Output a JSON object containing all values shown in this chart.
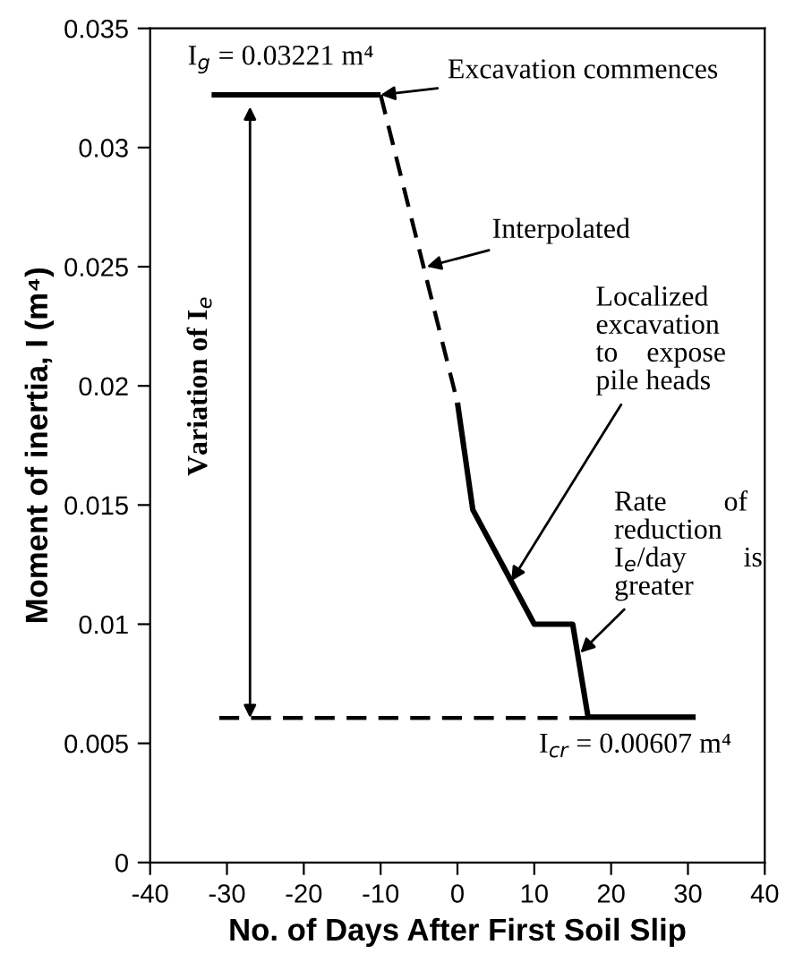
{
  "chart_data": {
    "type": "line",
    "xlabel": "No. of Days After First Soil Slip",
    "ylabel": "Moment of inertia, I (m⁴)",
    "series": [
      {
        "color": "#000000",
        "line_style": "solid",
        "x": [
          -32,
          -10
        ],
        "values": [
          0.03221,
          0.03221
        ]
      },
      {
        "color": "#000000",
        "line_style": "dashed",
        "x": [
          -10,
          0
        ],
        "values": [
          0.03221,
          0.0193
        ]
      },
      {
        "color": "#000000",
        "line_style": "solid",
        "x": [
          0,
          2,
          7,
          10,
          15,
          17,
          31
        ],
        "values": [
          0.0193,
          0.0148,
          0.0118,
          0.01,
          0.01,
          0.0061,
          0.0061
        ]
      },
      {
        "color": "#000000",
        "line_style": "dashed",
        "x": [
          -31,
          17
        ],
        "values": [
          0.00607,
          0.00607
        ]
      }
    ],
    "annotations": [
      "I$_{g}$ = 0.03221 m⁴",
      {
        "text": "Excavation commences",
        "x": -10,
        "y": 0.03221
      },
      {
        "text": "Interpolated",
        "x": -4,
        "y": 0.025
      },
      {
        "text": "Localized\nexcavation\nto    expose\npile heads",
        "x": 7,
        "y": 0.0118
      },
      {
        "text": "Rate        of\nreduction\nI$_{e}$/day        is\ngreater",
        "x": 16,
        "y": 0.0088
      },
      "Variation of I$_{e}$",
      "I$_{cr}$ = 0.00607 m⁴"
    ],
    "xlim": [
      -40,
      40
    ],
    "xticks": [
      -40,
      -30,
      -20,
      -10,
      0,
      10,
      20,
      30,
      40
    ],
    "ylim": [
      0,
      0.035
    ],
    "yticks": [
      0,
      0.005,
      0.01,
      0.015,
      0.02,
      0.025,
      0.03,
      0.035
    ],
    "grid": false,
    "legend": false,
    "marker": "none"
  }
}
